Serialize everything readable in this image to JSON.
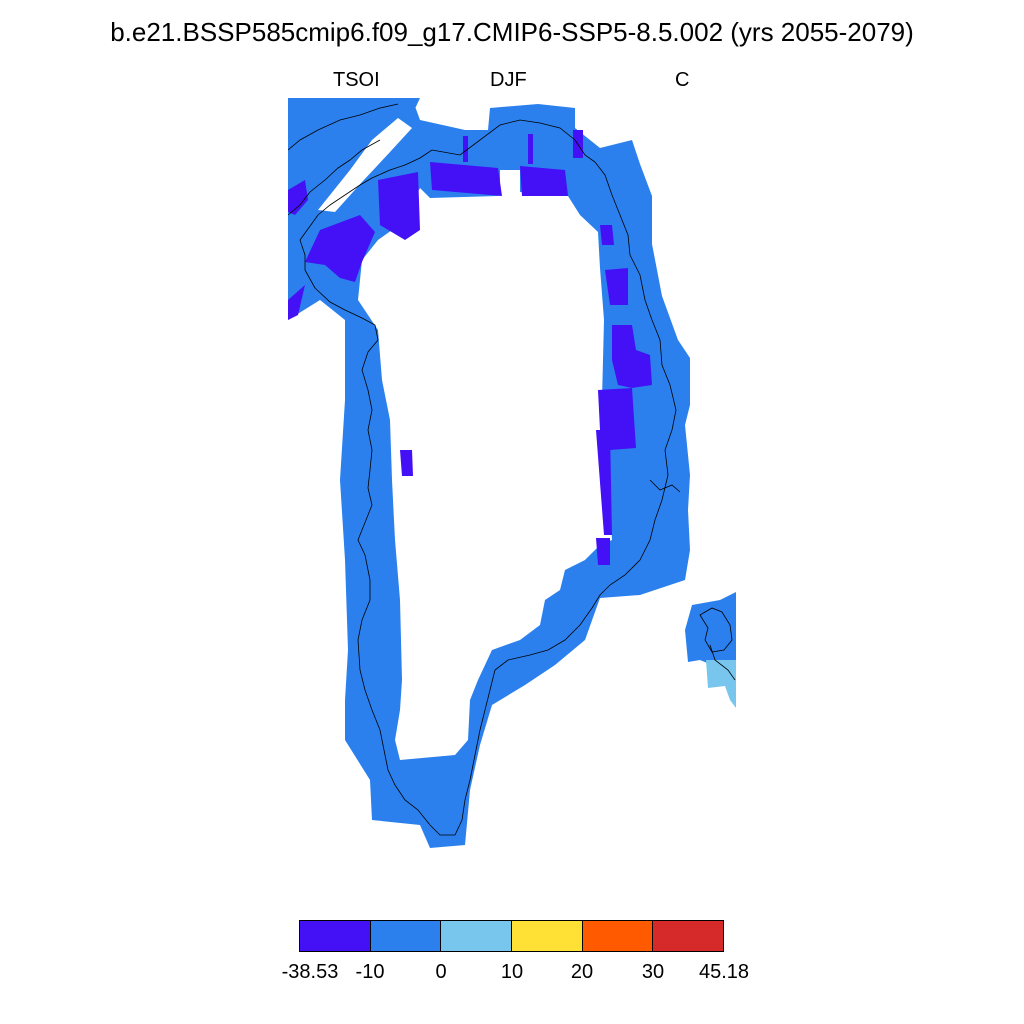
{
  "title": "b.e21.BSSP585cmip6.f09_g17.CMIP6-SSP5-8.5.002 (yrs 2055-2079)",
  "subtitle": {
    "left": "TSOI",
    "center": "DJF",
    "right": "C"
  },
  "colorbar": {
    "colors": [
      "#4410f5",
      "#2b80ee",
      "#78c6ee",
      "#ffe135",
      "#ff5a00",
      "#d62a2a"
    ],
    "labels": [
      "-38.53",
      "-10",
      "0",
      "10",
      "20",
      "30",
      "45.18"
    ]
  },
  "map": {
    "region": "Greenland",
    "colors": {
      "deep": "#4410f5",
      "mid": "#2b80ee",
      "light": "#78c6ee",
      "coast": "#000000"
    }
  }
}
